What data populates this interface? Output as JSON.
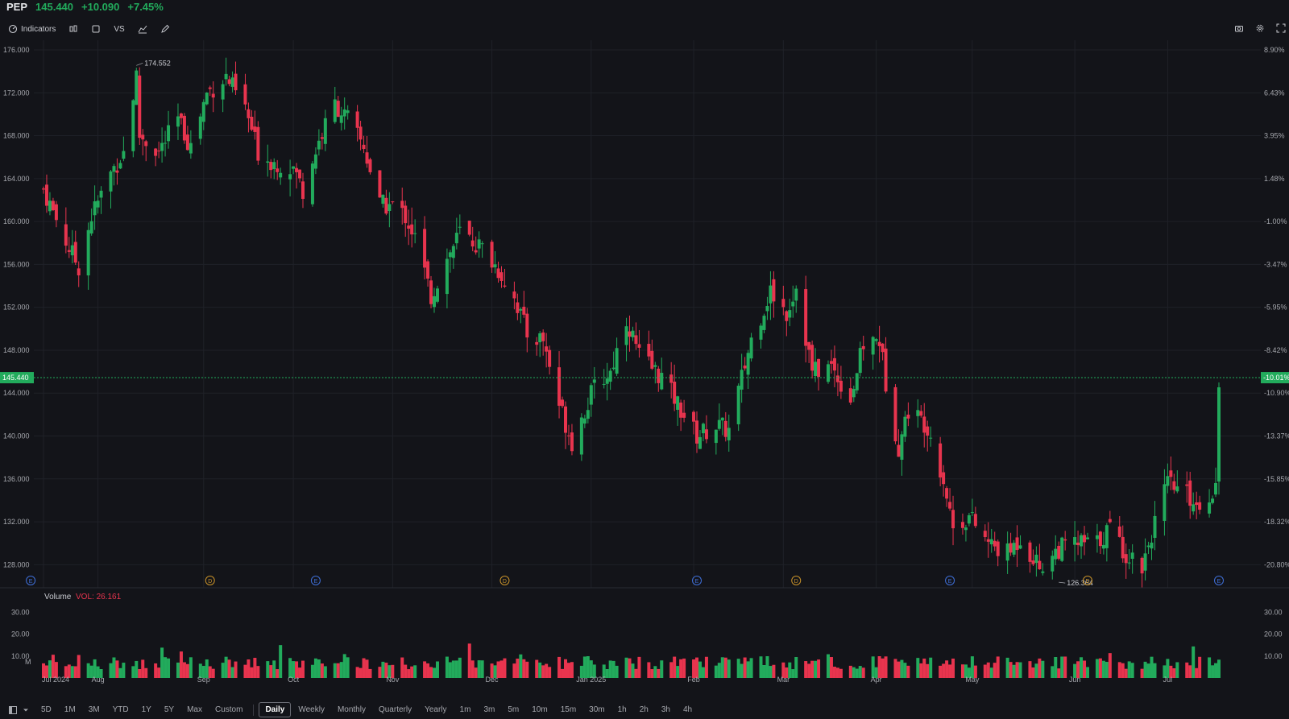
{
  "header": {
    "symbol": "PEP",
    "last": "145.440",
    "change": "+10.090",
    "change_pct": "+7.45%"
  },
  "toolbar": {
    "indicators_label": "Indicators",
    "compare_label": "VS"
  },
  "price_axis_labels": [
    "176.000",
    "172.000",
    "168.000",
    "164.000",
    "160.000",
    "156.000",
    "152.000",
    "148.000",
    "144.000",
    "140.000",
    "136.000",
    "132.000",
    "128.000"
  ],
  "pct_axis_labels": [
    "8.90%",
    "6.43%",
    "3.95%",
    "1.48%",
    "-1.00%",
    "-3.47%",
    "-5.95%",
    "-8.42%",
    "-10.90%",
    "-13.37%",
    "-15.85%",
    "-18.32%",
    "-20.80%"
  ],
  "last_price_tag": "145.440",
  "last_pct_tag": "-10.01%",
  "high_marker": "174.552",
  "low_marker": "126.364",
  "volume": {
    "title": "Volume",
    "value_label": "VOL: 26.161",
    "axis_labels": [
      "30.00",
      "20.00",
      "10.00",
      "M"
    ]
  },
  "x_axis_labels": [
    "Jul 2024",
    "Aug",
    "Sep",
    "Oct",
    "Nov",
    "Dec",
    "Jan 2025",
    "Feb",
    "Mar",
    "Apr",
    "May",
    "Jun",
    "Jul"
  ],
  "event_markers": [
    "E",
    "D",
    "E",
    "D",
    "E",
    "D",
    "E",
    "D",
    "E"
  ],
  "ranges": [
    "5D",
    "1M",
    "3M",
    "YTD",
    "1Y",
    "5Y",
    "Max",
    "Custom"
  ],
  "intervals": [
    "Daily",
    "Weekly",
    "Monthly",
    "Quarterly",
    "Yearly",
    "1m",
    "3m",
    "5m",
    "10m",
    "15m",
    "30m",
    "1h",
    "2h",
    "3h",
    "4h"
  ],
  "active_interval": "Daily",
  "colors": {
    "bg": "#131419",
    "up": "#22ab5c",
    "down": "#e8344e",
    "grid": "#1f2128",
    "text": "#a6a8ae",
    "event_e": "#3f6fd8",
    "event_d": "#c8922a"
  },
  "chart_data": {
    "type": "candlestick",
    "x_start": "2024-07-15",
    "x_end": "2025-07-17",
    "ylim": [
      126.0,
      177.0
    ],
    "volume_ylim": [
      0,
      30
    ],
    "anchors": [
      {
        "date": "2024-07-15",
        "close": 163.0
      },
      {
        "date": "2024-07-23",
        "close": 157.5
      },
      {
        "date": "2024-07-26",
        "close": 155.8
      },
      {
        "date": "2024-07-30",
        "close": 160.5
      },
      {
        "date": "2024-08-05",
        "close": 164.5
      },
      {
        "date": "2024-08-09",
        "close": 166.5
      },
      {
        "date": "2024-08-13",
        "close": 173.5
      },
      {
        "date": "2024-08-14",
        "close": 168.0
      },
      {
        "date": "2024-08-20",
        "close": 166.5
      },
      {
        "date": "2024-08-26",
        "close": 169.5
      },
      {
        "date": "2024-08-30",
        "close": 167.0
      },
      {
        "date": "2024-09-04",
        "close": 172.0
      },
      {
        "date": "2024-09-10",
        "close": 173.5
      },
      {
        "date": "2024-09-16",
        "close": 170.5
      },
      {
        "date": "2024-09-20",
        "close": 166.5
      },
      {
        "date": "2024-09-25",
        "close": 165.5
      },
      {
        "date": "2024-10-01",
        "close": 165.0
      },
      {
        "date": "2024-10-04",
        "close": 163.0
      },
      {
        "date": "2024-10-09",
        "close": 167.5
      },
      {
        "date": "2024-10-14",
        "close": 171.0
      },
      {
        "date": "2024-10-18",
        "close": 169.5
      },
      {
        "date": "2024-10-23",
        "close": 167.0
      },
      {
        "date": "2024-10-28",
        "close": 161.5
      },
      {
        "date": "2024-11-01",
        "close": 161.5
      },
      {
        "date": "2024-11-05",
        "close": 160.5
      },
      {
        "date": "2024-11-08",
        "close": 158.5
      },
      {
        "date": "2024-11-13",
        "close": 153.0
      },
      {
        "date": "2024-11-18",
        "close": 156.5
      },
      {
        "date": "2024-11-22",
        "close": 159.0
      },
      {
        "date": "2024-11-29",
        "close": 157.5
      },
      {
        "date": "2024-12-04",
        "close": 155.5
      },
      {
        "date": "2024-12-09",
        "close": 153.0
      },
      {
        "date": "2024-12-13",
        "close": 149.5
      },
      {
        "date": "2024-12-18",
        "close": 149.0
      },
      {
        "date": "2024-12-23",
        "close": 143.0
      },
      {
        "date": "2024-12-27",
        "close": 139.5
      },
      {
        "date": "2025-01-03",
        "close": 144.5
      },
      {
        "date": "2025-01-08",
        "close": 146.0
      },
      {
        "date": "2025-01-13",
        "close": 151.0
      },
      {
        "date": "2025-01-17",
        "close": 147.5
      },
      {
        "date": "2025-01-24",
        "close": 145.5
      },
      {
        "date": "2025-01-29",
        "close": 143.0
      },
      {
        "date": "2025-02-04",
        "close": 140.0
      },
      {
        "date": "2025-02-10",
        "close": 141.0
      },
      {
        "date": "2025-02-14",
        "close": 140.5
      },
      {
        "date": "2025-02-21",
        "close": 149.0
      },
      {
        "date": "2025-02-27",
        "close": 153.5
      },
      {
        "date": "2025-03-04",
        "close": 151.5
      },
      {
        "date": "2025-03-07",
        "close": 154.0
      },
      {
        "date": "2025-03-12",
        "close": 146.0
      },
      {
        "date": "2025-03-18",
        "close": 146.5
      },
      {
        "date": "2025-03-24",
        "close": 143.5
      },
      {
        "date": "2025-03-28",
        "close": 148.5
      },
      {
        "date": "2025-04-02",
        "close": 149.0
      },
      {
        "date": "2025-04-04",
        "close": 145.0
      },
      {
        "date": "2025-04-08",
        "close": 139.0
      },
      {
        "date": "2025-04-11",
        "close": 142.5
      },
      {
        "date": "2025-04-17",
        "close": 141.0
      },
      {
        "date": "2025-04-22",
        "close": 136.0
      },
      {
        "date": "2025-04-25",
        "close": 131.5
      },
      {
        "date": "2025-04-30",
        "close": 132.5
      },
      {
        "date": "2025-05-06",
        "close": 130.0
      },
      {
        "date": "2025-05-12",
        "close": 129.0
      },
      {
        "date": "2025-05-16",
        "close": 130.5
      },
      {
        "date": "2025-05-22",
        "close": 127.8
      },
      {
        "date": "2025-05-28",
        "close": 129.5
      },
      {
        "date": "2025-06-03",
        "close": 130.0
      },
      {
        "date": "2025-06-09",
        "close": 130.0
      },
      {
        "date": "2025-06-13",
        "close": 131.5
      },
      {
        "date": "2025-06-18",
        "close": 129.0
      },
      {
        "date": "2025-06-23",
        "close": 128.0
      },
      {
        "date": "2025-06-27",
        "close": 132.0
      },
      {
        "date": "2025-07-01",
        "close": 135.5
      },
      {
        "date": "2025-07-07",
        "close": 134.5
      },
      {
        "date": "2025-07-11",
        "close": 133.5
      },
      {
        "date": "2025-07-16",
        "close": 135.35
      },
      {
        "date": "2025-07-17",
        "close": 145.44
      }
    ],
    "events": [
      {
        "date": "2024-07-11",
        "type": "E"
      },
      {
        "date": "2024-09-05",
        "type": "D"
      },
      {
        "date": "2024-10-08",
        "type": "E"
      },
      {
        "date": "2024-12-06",
        "type": "D"
      },
      {
        "date": "2025-02-04",
        "type": "E"
      },
      {
        "date": "2025-03-07",
        "type": "D"
      },
      {
        "date": "2025-04-24",
        "type": "E"
      },
      {
        "date": "2025-06-06",
        "type": "D"
      },
      {
        "date": "2025-07-17",
        "type": "E"
      }
    ],
    "annotations": [
      {
        "label": "174.552",
        "date": "2024-08-13",
        "value": 174.552
      },
      {
        "label": "126.364",
        "date": "2025-05-28",
        "value": 126.364
      }
    ]
  }
}
